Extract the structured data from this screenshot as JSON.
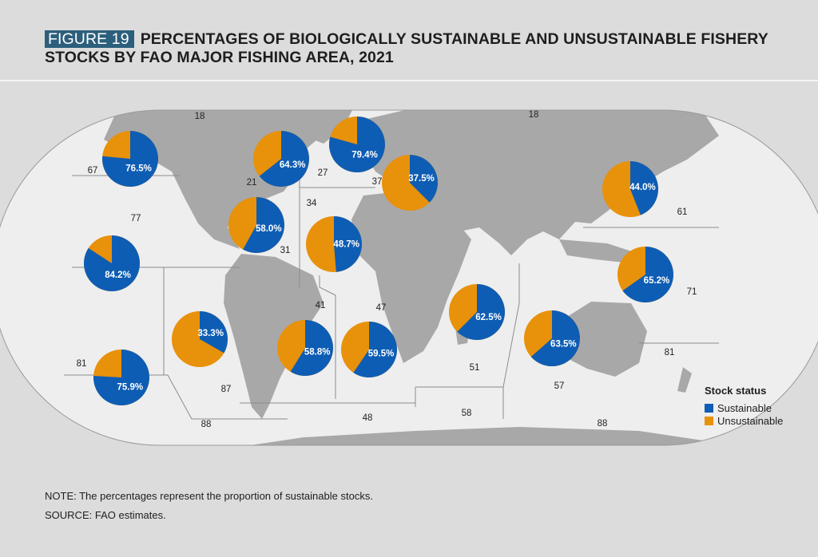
{
  "header": {
    "figure_label": "FIGURE 19",
    "title": "PERCENTAGES OF BIOLOGICALLY SUSTAINABLE AND UNSUSTAINABLE FISHERY STOCKS BY FAO MAJOR FISHING AREA, 2021"
  },
  "colors": {
    "sustainable": "#0e5db4",
    "unsustainable": "#e8910a",
    "ocean": "#eeeeee",
    "land": "#a8a8a8",
    "boundary": "#8c8c8c"
  },
  "legend": {
    "title": "Stock status",
    "items": [
      {
        "label": "Sustainable",
        "color": "#0e5db4"
      },
      {
        "label": "Unsustainable",
        "color": "#e8910a"
      }
    ]
  },
  "area_labels": [
    "18",
    "18",
    "67",
    "27",
    "21",
    "37",
    "34",
    "61",
    "77",
    "31",
    "41",
    "47",
    "71",
    "81",
    "51",
    "57",
    "81",
    "87",
    "88",
    "48",
    "58",
    "88"
  ],
  "pies": [
    {
      "area": "67",
      "sustainable_pct": 76.5,
      "label": "76.5%"
    },
    {
      "area": "21",
      "sustainable_pct": 64.3,
      "label": "64.3%"
    },
    {
      "area": "27",
      "sustainable_pct": 79.4,
      "label": "79.4%"
    },
    {
      "area": "37",
      "sustainable_pct": 37.5,
      "label": "37.5%"
    },
    {
      "area": "61",
      "sustainable_pct": 44.0,
      "label": "44.0%"
    },
    {
      "area": "31",
      "sustainable_pct": 58.0,
      "label": "58.0%"
    },
    {
      "area": "34",
      "sustainable_pct": 48.7,
      "label": "48.7%"
    },
    {
      "area": "77",
      "sustainable_pct": 84.2,
      "label": "84.2%"
    },
    {
      "area": "71",
      "sustainable_pct": 65.2,
      "label": "65.2%"
    },
    {
      "area": "51",
      "sustainable_pct": 62.5,
      "label": "62.5%"
    },
    {
      "area": "57",
      "sustainable_pct": 63.5,
      "label": "63.5%"
    },
    {
      "area": "87",
      "sustainable_pct": 33.3,
      "label": "33.3%"
    },
    {
      "area": "41",
      "sustainable_pct": 58.8,
      "label": "58.8%"
    },
    {
      "area": "47",
      "sustainable_pct": 59.5,
      "label": "59.5%"
    },
    {
      "area": "81",
      "sustainable_pct": 75.9,
      "label": "75.9%"
    }
  ],
  "note": "NOTE: The percentages represent the proportion of sustainable stocks.",
  "source": "SOURCE: FAO estimates."
}
